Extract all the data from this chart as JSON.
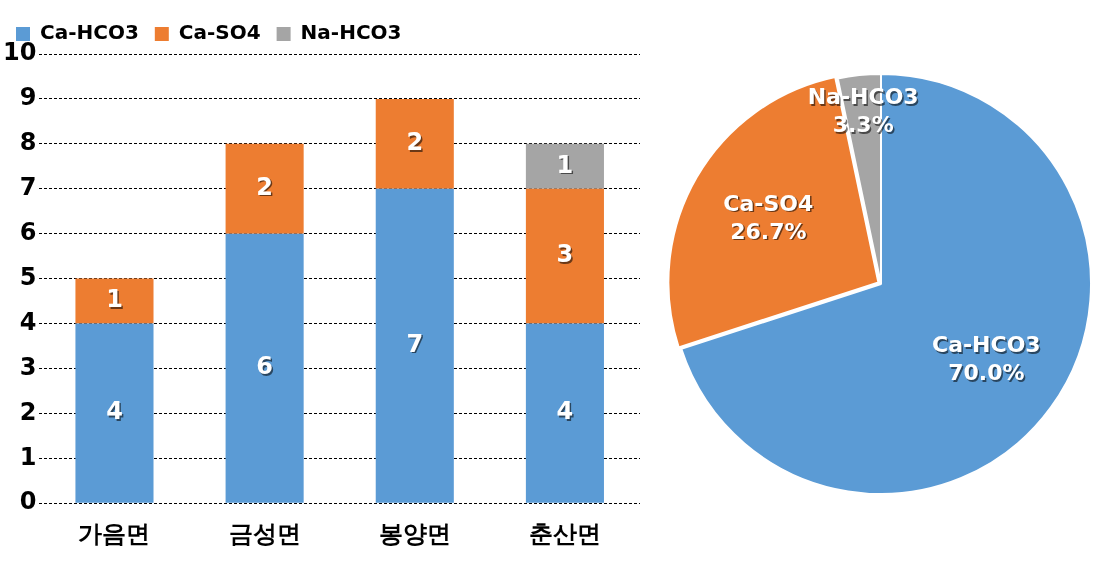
{
  "chart_data": [
    {
      "type": "bar",
      "stacked": true,
      "categories": [
        "가음면",
        "금성면",
        "봉양면",
        "춘산면"
      ],
      "series": [
        {
          "name": "Ca-HCO3",
          "color": "#5b9bd5",
          "values": [
            4,
            6,
            7,
            4
          ]
        },
        {
          "name": "Ca-SO4",
          "color": "#ed7d31",
          "values": [
            1,
            2,
            2,
            3
          ]
        },
        {
          "name": "Na-HCO3",
          "color": "#a5a5a5",
          "values": [
            null,
            null,
            null,
            1
          ]
        }
      ],
      "ylim": [
        0,
        10
      ],
      "yticks": [
        0,
        1,
        2,
        3,
        4,
        5,
        6,
        7,
        8,
        9,
        10
      ],
      "grid": "y",
      "line_style": "dashed",
      "legend": "top left",
      "data_labels": true
    },
    {
      "type": "pie",
      "categories": [
        "Ca-HCO3",
        "Ca-SO4",
        "Na-HCO3"
      ],
      "values": [
        70.0,
        26.7,
        3.3
      ],
      "colors": [
        "#5b9bd5",
        "#ed7d31",
        "#a5a5a5"
      ],
      "value_labels": [
        "70.0%",
        "26.7%",
        "3.3%"
      ],
      "legend": false
    }
  ]
}
